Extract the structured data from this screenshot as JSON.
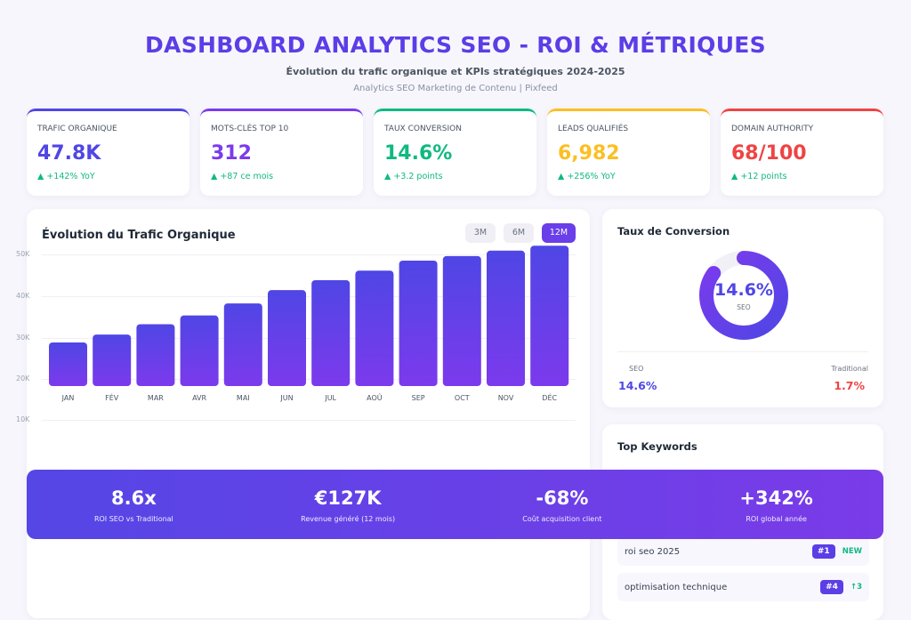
{
  "header": {
    "title": "DASHBOARD ANALYTICS SEO - ROI & MÉTRIQUES",
    "subtitle": "Évolution du trafic organique et KPIs stratégiques 2024-2025",
    "source": "Analytics SEO Marketing de Contenu | Pixfeed"
  },
  "kpis": [
    {
      "label": "TRAFIC ORGANIQUE",
      "value": "47.8K",
      "change": "▲ +142% YoY",
      "color": "#4f46e5"
    },
    {
      "label": "MOTS-CLÉS TOP 10",
      "value": "312",
      "change": "▲ +87 ce mois",
      "color": "#7c3aed"
    },
    {
      "label": "TAUX CONVERSION",
      "value": "14.6%",
      "change": "▲ +3.2 points",
      "color": "#10b981"
    },
    {
      "label": "LEADS QUALIFIÉS",
      "value": "6,982",
      "change": "▲ +256% YoY",
      "color": "#fbbf24"
    },
    {
      "label": "DOMAIN AUTHORITY",
      "value": "68/100",
      "change": "▲ +12 points",
      "color": "#ef4444"
    }
  ],
  "traffic": {
    "title": "Évolution du Trafic Organique",
    "ranges": [
      "3M",
      "6M",
      "12M"
    ],
    "active_range": "12M"
  },
  "chart_data": {
    "type": "bar",
    "categories": [
      "JAN",
      "FÉV",
      "MAR",
      "AVR",
      "MAI",
      "JUN",
      "JUL",
      "AOÛ",
      "SEP",
      "OCT",
      "NOV",
      "DÉC"
    ],
    "values": [
      28.8,
      30.7,
      33.2,
      35.3,
      38.2,
      41.4,
      43.8,
      46.1,
      48.5,
      49.6,
      50.9,
      52.1
    ],
    "yticks": [
      "50K",
      "40K",
      "30K",
      "20K",
      "10K"
    ],
    "colors": [
      "#4f46e5",
      "#7c3aed"
    ]
  },
  "conversion": {
    "title": "Taux de Conversion",
    "center_value": "14.6%",
    "center_label": "SEO",
    "fill_percent": 85,
    "seo_label": "SEO",
    "seo_value": "14.6%",
    "trad_label": "Traditional",
    "trad_value": "1.7%"
  },
  "roi": [
    {
      "value": "8.6x",
      "label": "ROI SEO vs Traditional"
    },
    {
      "value": "€127K",
      "label": "Revenue généré (12 mois)"
    },
    {
      "value": "-68%",
      "label": "Coût acquisition client"
    },
    {
      "value": "+342%",
      "label": "ROI global année"
    }
  ],
  "keywords": {
    "title": "Top Keywords",
    "items": [
      {
        "keyword": "roi seo 2025",
        "rank": "#1",
        "trend": "NEW"
      },
      {
        "keyword": "optimisation technique",
        "rank": "#4",
        "trend": "↑3"
      }
    ]
  }
}
